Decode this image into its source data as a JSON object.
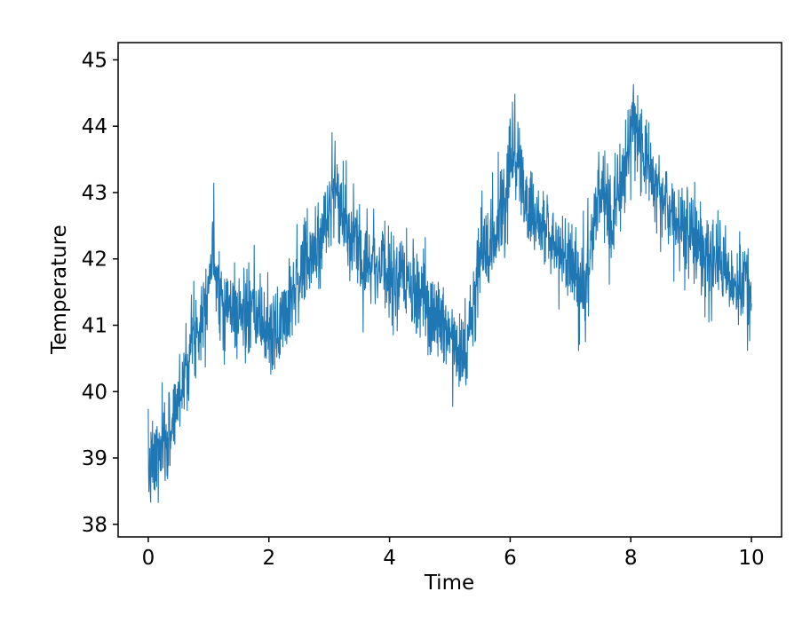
{
  "figure": {
    "background": "#ffffff",
    "plot_background": "#ffffff"
  },
  "chart_data": {
    "type": "line",
    "title": "",
    "xlabel": "Time",
    "ylabel": "Temperature",
    "xlim": [
      -0.5,
      10.5
    ],
    "ylim": [
      37.81,
      45.26
    ],
    "x_ticks": [
      0,
      2,
      4,
      6,
      8,
      10
    ],
    "y_ticks": [
      38,
      39,
      40,
      41,
      42,
      43,
      44,
      45
    ],
    "grid": false,
    "legend": null,
    "frame": "full-box",
    "axis_color": "#000000",
    "text_color": "#000000",
    "series": [
      {
        "name": "Temperature",
        "color": "#1f77b4",
        "style": "noisy-line",
        "line_width": 1.1,
        "n_points": 2000,
        "noise_sigma": 0.34,
        "seed": 7,
        "trend": [
          [
            0.0,
            38.8
          ],
          [
            0.3,
            39.2
          ],
          [
            0.5,
            39.9
          ],
          [
            0.7,
            40.7
          ],
          [
            0.9,
            41.2
          ],
          [
            1.07,
            42.1
          ],
          [
            1.25,
            41.3
          ],
          [
            1.5,
            41.2
          ],
          [
            1.8,
            41.1
          ],
          [
            2.1,
            40.8
          ],
          [
            2.4,
            41.6
          ],
          [
            2.7,
            42.0
          ],
          [
            2.9,
            42.4
          ],
          [
            3.08,
            43.1
          ],
          [
            3.35,
            42.3
          ],
          [
            3.7,
            42.0
          ],
          [
            4.1,
            41.7
          ],
          [
            4.5,
            41.4
          ],
          [
            4.9,
            41.0
          ],
          [
            5.3,
            40.6
          ],
          [
            5.5,
            42.0
          ],
          [
            5.75,
            42.4
          ],
          [
            5.95,
            43.0
          ],
          [
            6.05,
            43.8
          ],
          [
            6.3,
            42.8
          ],
          [
            6.6,
            42.4
          ],
          [
            7.0,
            42.0
          ],
          [
            7.25,
            41.5
          ],
          [
            7.47,
            43.0
          ],
          [
            7.7,
            42.6
          ],
          [
            7.85,
            43.1
          ],
          [
            8.05,
            44.2
          ],
          [
            8.35,
            43.2
          ],
          [
            8.7,
            42.7
          ],
          [
            9.1,
            42.3
          ],
          [
            9.5,
            41.9
          ],
          [
            10.0,
            41.4
          ]
        ],
        "observed_extremes": {
          "min": [
            0.05,
            38.05
          ],
          "max": [
            8.05,
            44.93
          ],
          "peaks": [
            [
              1.07,
              42.9
            ],
            [
              3.08,
              43.75
            ],
            [
              6.05,
              44.55
            ],
            [
              8.05,
              44.93
            ]
          ],
          "troughs": [
            [
              2.1,
              39.6
            ],
            [
              5.3,
              39.8
            ],
            [
              7.25,
              40.65
            ]
          ]
        }
      }
    ]
  }
}
